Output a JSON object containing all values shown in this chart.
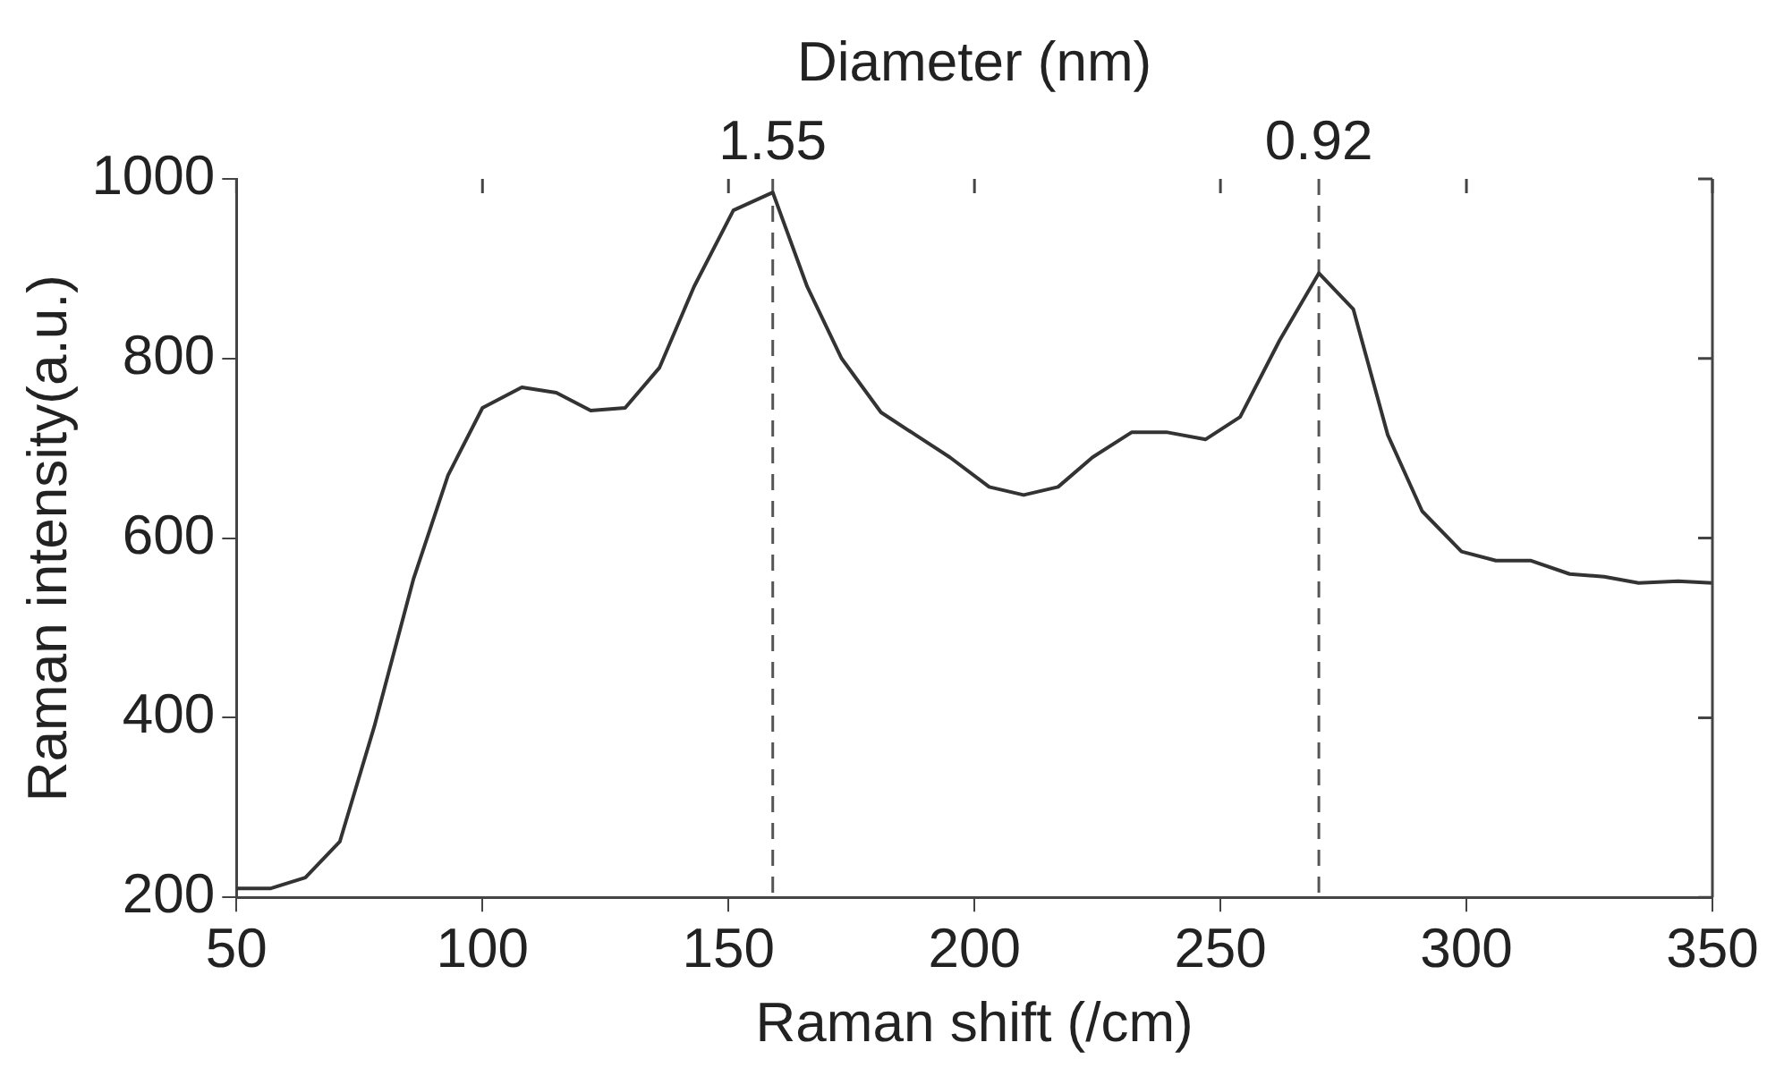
{
  "chart_data": {
    "type": "line",
    "xlabel": "Raman shift (/cm)",
    "ylabel": "Raman intensity(a.u.)",
    "x2label": "Diameter (nm)",
    "x": [
      50,
      57,
      64,
      71,
      78,
      86,
      93,
      100,
      108,
      115,
      122,
      129,
      136,
      143,
      151,
      159,
      166,
      173,
      181,
      188,
      195,
      203,
      210,
      217,
      224,
      232,
      239,
      247,
      254,
      262,
      270,
      277,
      284,
      291,
      299,
      306,
      313,
      321,
      328,
      335,
      343,
      350
    ],
    "series": [
      {
        "color": "#333333",
        "values": [
          210,
          210,
          222,
          262,
          390,
          555,
          670,
          745,
          768,
          762,
          742,
          745,
          790,
          880,
          965,
          985,
          880,
          800,
          740,
          715,
          690,
          657,
          648,
          657,
          690,
          718,
          718,
          710,
          735,
          820,
          895,
          855,
          715,
          630,
          585,
          575,
          575,
          560,
          557,
          550,
          552,
          550
        ]
      }
    ],
    "xlim": [
      50,
      350
    ],
    "xticks": [
      50,
      100,
      150,
      200,
      250,
      300,
      350
    ],
    "ylim": [
      200,
      1000
    ],
    "yticks": [
      200,
      400,
      600,
      800,
      1000
    ],
    "ref_lines": [
      {
        "axis": "x",
        "value": 159,
        "color": "#555555",
        "line_style": "dashed"
      },
      {
        "axis": "x",
        "value": 270,
        "color": "#555555",
        "line_style": "dashed"
      }
    ],
    "annotations": [
      "1.55",
      "0.92"
    ],
    "grid": false,
    "legend": false,
    "marker": "none",
    "line_style": "solid"
  }
}
